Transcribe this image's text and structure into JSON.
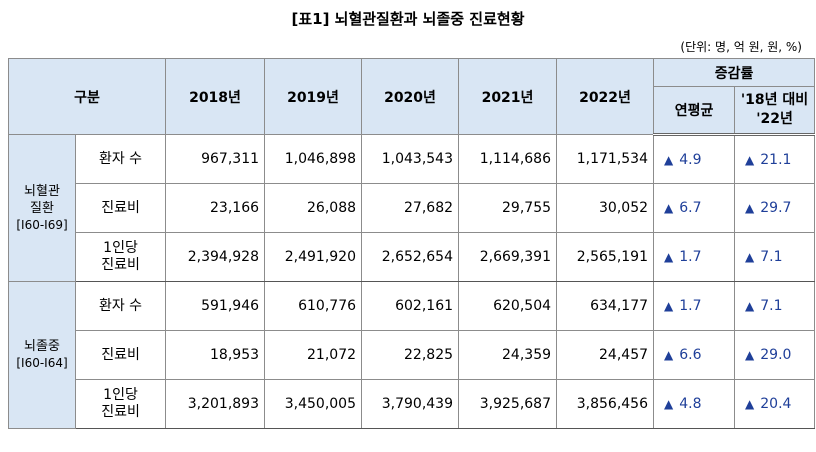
{
  "title": "[표1] 뇌혈관질환과 뇌졸중 진료현황",
  "unit": "(단위: 명, 억 원, 원, %)",
  "header": {
    "category": "구분",
    "years": [
      "2018년",
      "2019년",
      "2020년",
      "2021년",
      "2022년"
    ],
    "change": "증감률",
    "cagr": "연평균",
    "vs18_line1": "'18년 대비",
    "vs18_line2": "'22년"
  },
  "increase_symbol": "▲",
  "groups": [
    {
      "name_line1": "뇌혈관",
      "name_line2": "질환",
      "code": "[I60-I69]",
      "rows": [
        {
          "label": "환자 수",
          "values": [
            "967,311",
            "1,046,898",
            "1,043,543",
            "1,114,686",
            "1,171,534"
          ],
          "cagr": "4.9",
          "vs18": "21.1"
        },
        {
          "label": "진료비",
          "values": [
            "23,166",
            "26,088",
            "27,682",
            "29,755",
            "30,052"
          ],
          "cagr": "6.7",
          "vs18": "29.7"
        },
        {
          "label_line1": "1인당",
          "label_line2": "진료비",
          "values": [
            "2,394,928",
            "2,491,920",
            "2,652,654",
            "2,669,391",
            "2,565,191"
          ],
          "cagr": "1.7",
          "vs18": "7.1"
        }
      ]
    },
    {
      "name_line1": "뇌졸중",
      "code": "[I60-I64]",
      "rows": [
        {
          "label": "환자 수",
          "values": [
            "591,946",
            "610,776",
            "602,161",
            "620,504",
            "634,177"
          ],
          "cagr": "1.7",
          "vs18": "7.1"
        },
        {
          "label": "진료비",
          "values": [
            "18,953",
            "21,072",
            "22,825",
            "24,359",
            "24,457"
          ],
          "cagr": "6.6",
          "vs18": "29.0"
        },
        {
          "label_line1": "1인당",
          "label_line2": "진료비",
          "values": [
            "3,201,893",
            "3,450,005",
            "3,790,439",
            "3,925,687",
            "3,856,456"
          ],
          "cagr": "4.8",
          "vs18": "20.4"
        }
      ]
    }
  ]
}
